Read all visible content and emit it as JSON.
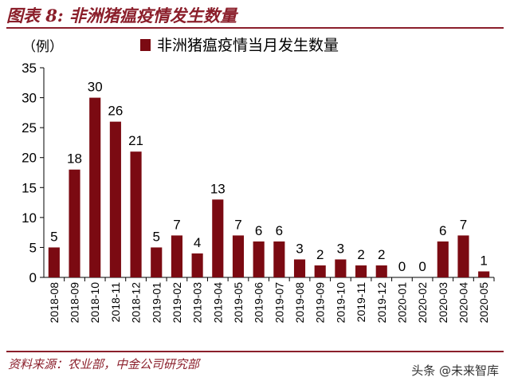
{
  "figure_title": "图表 8: 非洲猪瘟疫情发生数量",
  "source_text": "资料来源：农业部，中金公司研究部",
  "watermark": "头条 @未来智库",
  "colors": {
    "bar": "#7b0a12",
    "accent": "#8b1f2b",
    "axis": "#000000"
  },
  "chart_data": {
    "type": "bar",
    "ylabel": "（例）",
    "legend": [
      "非洲猪瘟疫情当月发生数量"
    ],
    "legend_position": "top",
    "grid": false,
    "ylim": [
      0,
      35
    ],
    "yticks": [
      0,
      5,
      10,
      15,
      20,
      25,
      30,
      35
    ],
    "categories": [
      "2018-08",
      "2018-09",
      "2018-10",
      "2018-11",
      "2018-12",
      "2019-01",
      "2019-02",
      "2019-03",
      "2019-04",
      "2019-05",
      "2019-06",
      "2019-07",
      "2019-08",
      "2019-09",
      "2019-10",
      "2019-11",
      "2019-12",
      "2020-01",
      "2020-02",
      "2020-03",
      "2020-04",
      "2020-05"
    ],
    "series": [
      {
        "name": "非洲猪瘟疫情当月发生数量",
        "values": [
          5,
          18,
          30,
          26,
          21,
          5,
          7,
          4,
          13,
          7,
          6,
          6,
          3,
          2,
          3,
          2,
          2,
          0,
          0,
          6,
          7,
          1
        ]
      }
    ]
  }
}
